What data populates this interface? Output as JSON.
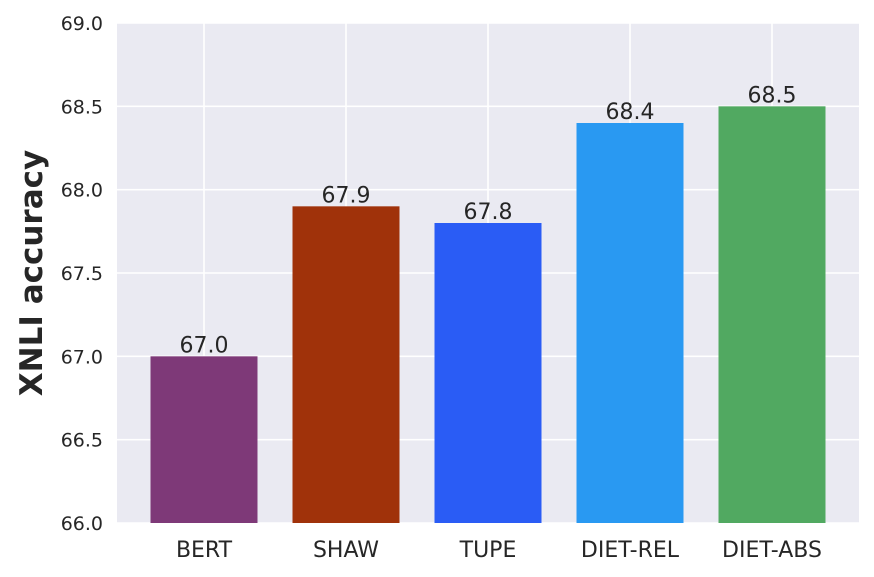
{
  "chart_data": {
    "type": "bar",
    "categories": [
      "BERT",
      "SHAW",
      "TUPE",
      "DIET-REL",
      "DIET-ABS"
    ],
    "values": [
      67.0,
      67.9,
      67.8,
      68.4,
      68.5
    ],
    "data_labels": [
      "67.0",
      "67.9",
      "67.8",
      "68.4",
      "68.5"
    ],
    "colors": [
      "#7e3978",
      "#a0320a",
      "#2a5cf5",
      "#2999f2",
      "#51a961"
    ],
    "title": "",
    "xlabel": "",
    "ylabel": "XNLI accuracy",
    "ylim": [
      66.0,
      69.0
    ],
    "yticks": [
      "66.0",
      "66.5",
      "67.0",
      "67.5",
      "68.0",
      "68.5",
      "69.0"
    ],
    "grid": true,
    "plot_background": "#eaeaf2",
    "grid_color": "#ffffff"
  }
}
